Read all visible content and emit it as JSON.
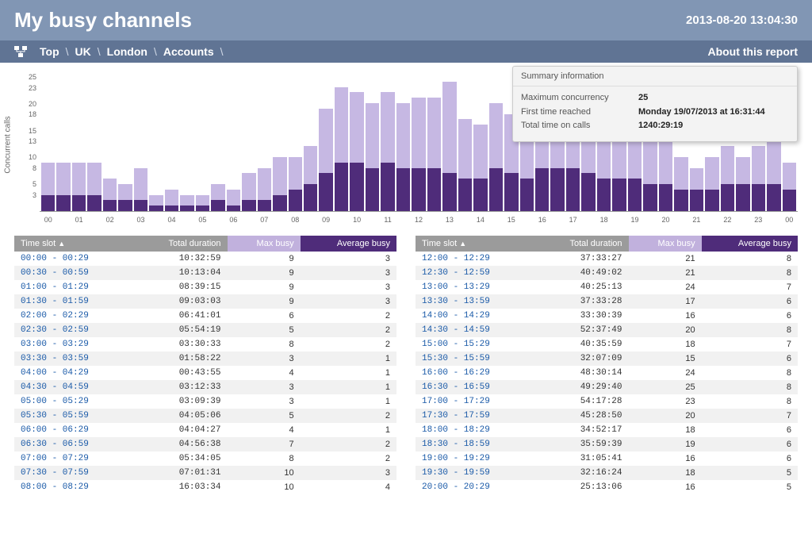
{
  "header": {
    "title": "My busy channels",
    "timestamp": "2013-08-20 13:04:30"
  },
  "nav": {
    "crumbs": [
      "Top",
      "UK",
      "London",
      "Accounts"
    ],
    "about": "About this report"
  },
  "chart": {
    "ylabel": "Concurrent calls",
    "ylim": [
      0,
      25
    ],
    "yticks": [
      3,
      5,
      8,
      10,
      13,
      15,
      18,
      20,
      23,
      25
    ],
    "max_color": "#c6b8e3",
    "avg_color": "#4f2c7a",
    "bg": "#ffffff",
    "xticks": [
      "00",
      "01",
      "02",
      "03",
      "04",
      "05",
      "06",
      "07",
      "08",
      "09",
      "10",
      "11",
      "12",
      "13",
      "14",
      "15",
      "16",
      "17",
      "18",
      "19",
      "20",
      "21",
      "22",
      "23",
      "00"
    ],
    "bars": [
      {
        "m": 9,
        "a": 3
      },
      {
        "m": 9,
        "a": 3
      },
      {
        "m": 9,
        "a": 3
      },
      {
        "m": 9,
        "a": 3
      },
      {
        "m": 6,
        "a": 2
      },
      {
        "m": 5,
        "a": 2
      },
      {
        "m": 8,
        "a": 2
      },
      {
        "m": 3,
        "a": 1
      },
      {
        "m": 4,
        "a": 1
      },
      {
        "m": 3,
        "a": 1
      },
      {
        "m": 3,
        "a": 1
      },
      {
        "m": 5,
        "a": 2
      },
      {
        "m": 4,
        "a": 1
      },
      {
        "m": 7,
        "a": 2
      },
      {
        "m": 8,
        "a": 2
      },
      {
        "m": 10,
        "a": 3
      },
      {
        "m": 10,
        "a": 4
      },
      {
        "m": 12,
        "a": 5
      },
      {
        "m": 19,
        "a": 7
      },
      {
        "m": 23,
        "a": 9
      },
      {
        "m": 22,
        "a": 9
      },
      {
        "m": 20,
        "a": 8
      },
      {
        "m": 22,
        "a": 9
      },
      {
        "m": 20,
        "a": 8
      },
      {
        "m": 21,
        "a": 8
      },
      {
        "m": 21,
        "a": 8
      },
      {
        "m": 24,
        "a": 7
      },
      {
        "m": 17,
        "a": 6
      },
      {
        "m": 16,
        "a": 6
      },
      {
        "m": 20,
        "a": 8
      },
      {
        "m": 18,
        "a": 7
      },
      {
        "m": 15,
        "a": 6
      },
      {
        "m": 24,
        "a": 8
      },
      {
        "m": 25,
        "a": 8
      },
      {
        "m": 23,
        "a": 8
      },
      {
        "m": 20,
        "a": 7
      },
      {
        "m": 18,
        "a": 6
      },
      {
        "m": 19,
        "a": 6
      },
      {
        "m": 16,
        "a": 6
      },
      {
        "m": 18,
        "a": 5
      },
      {
        "m": 16,
        "a": 5
      },
      {
        "m": 10,
        "a": 4
      },
      {
        "m": 8,
        "a": 4
      },
      {
        "m": 10,
        "a": 4
      },
      {
        "m": 12,
        "a": 5
      },
      {
        "m": 10,
        "a": 5
      },
      {
        "m": 12,
        "a": 5
      },
      {
        "m": 13,
        "a": 5
      },
      {
        "m": 9,
        "a": 4
      }
    ]
  },
  "summary": {
    "title": "Summary information",
    "rows": [
      {
        "k": "Maximum concurrency",
        "v": "25"
      },
      {
        "k": "First time reached",
        "v": "Monday 19/07/2013 at 16:31:44"
      },
      {
        "k": "Total time on calls",
        "v": "1240:29:19"
      }
    ]
  },
  "table_cols": {
    "ts": "Time slot",
    "sort": "▲",
    "dur": "Total duration",
    "max": "Max busy",
    "avg": "Average busy"
  },
  "left_rows": [
    {
      "ts": "00:00 - 00:29",
      "d": "10:32:59",
      "m": 9,
      "a": 3
    },
    {
      "ts": "00:30 - 00:59",
      "d": "10:13:04",
      "m": 9,
      "a": 3
    },
    {
      "ts": "01:00 - 01:29",
      "d": "08:39:15",
      "m": 9,
      "a": 3
    },
    {
      "ts": "01:30 - 01:59",
      "d": "09:03:03",
      "m": 9,
      "a": 3
    },
    {
      "ts": "02:00 - 02:29",
      "d": "06:41:01",
      "m": 6,
      "a": 2
    },
    {
      "ts": "02:30 - 02:59",
      "d": "05:54:19",
      "m": 5,
      "a": 2
    },
    {
      "ts": "03:00 - 03:29",
      "d": "03:30:33",
      "m": 8,
      "a": 2
    },
    {
      "ts": "03:30 - 03:59",
      "d": "01:58:22",
      "m": 3,
      "a": 1
    },
    {
      "ts": "04:00 - 04:29",
      "d": "00:43:55",
      "m": 4,
      "a": 1
    },
    {
      "ts": "04:30 - 04:59",
      "d": "03:12:33",
      "m": 3,
      "a": 1
    },
    {
      "ts": "05:00 - 05:29",
      "d": "03:09:39",
      "m": 3,
      "a": 1
    },
    {
      "ts": "05:30 - 05:59",
      "d": "04:05:06",
      "m": 5,
      "a": 2
    },
    {
      "ts": "06:00 - 06:29",
      "d": "04:04:27",
      "m": 4,
      "a": 1
    },
    {
      "ts": "06:30 - 06:59",
      "d": "04:56:38",
      "m": 7,
      "a": 2
    },
    {
      "ts": "07:00 - 07:29",
      "d": "05:34:05",
      "m": 8,
      "a": 2
    },
    {
      "ts": "07:30 - 07:59",
      "d": "07:01:31",
      "m": 10,
      "a": 3
    },
    {
      "ts": "08:00 - 08:29",
      "d": "16:03:34",
      "m": 10,
      "a": 4
    }
  ],
  "right_rows": [
    {
      "ts": "12:00 - 12:29",
      "d": "37:33:27",
      "m": 21,
      "a": 8
    },
    {
      "ts": "12:30 - 12:59",
      "d": "40:49:02",
      "m": 21,
      "a": 8
    },
    {
      "ts": "13:00 - 13:29",
      "d": "40:25:13",
      "m": 24,
      "a": 7
    },
    {
      "ts": "13:30 - 13:59",
      "d": "37:33:28",
      "m": 17,
      "a": 6
    },
    {
      "ts": "14:00 - 14:29",
      "d": "33:30:39",
      "m": 16,
      "a": 6
    },
    {
      "ts": "14:30 - 14:59",
      "d": "52:37:49",
      "m": 20,
      "a": 8
    },
    {
      "ts": "15:00 - 15:29",
      "d": "40:35:59",
      "m": 18,
      "a": 7
    },
    {
      "ts": "15:30 - 15:59",
      "d": "32:07:09",
      "m": 15,
      "a": 6
    },
    {
      "ts": "16:00 - 16:29",
      "d": "48:30:14",
      "m": 24,
      "a": 8
    },
    {
      "ts": "16:30 - 16:59",
      "d": "49:29:40",
      "m": 25,
      "a": 8
    },
    {
      "ts": "17:00 - 17:29",
      "d": "54:17:28",
      "m": 23,
      "a": 8
    },
    {
      "ts": "17:30 - 17:59",
      "d": "45:28:50",
      "m": 20,
      "a": 7
    },
    {
      "ts": "18:00 - 18:29",
      "d": "34:52:17",
      "m": 18,
      "a": 6
    },
    {
      "ts": "18:30 - 18:59",
      "d": "35:59:39",
      "m": 19,
      "a": 6
    },
    {
      "ts": "19:00 - 19:29",
      "d": "31:05:41",
      "m": 16,
      "a": 6
    },
    {
      "ts": "19:30 - 19:59",
      "d": "32:16:24",
      "m": 18,
      "a": 5
    },
    {
      "ts": "20:00 - 20:29",
      "d": "25:13:06",
      "m": 16,
      "a": 5
    }
  ]
}
